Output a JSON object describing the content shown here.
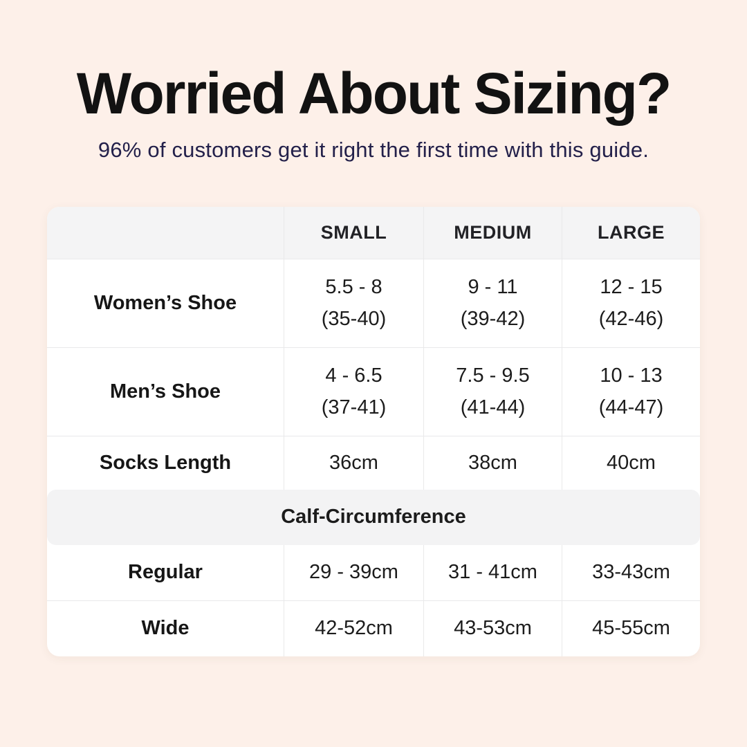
{
  "colors": {
    "background": "#fdf0e9",
    "title": "#121212",
    "subtitle": "#23204a",
    "card_background": "#ffffff",
    "header_row_background": "#f4f4f5",
    "band_background": "#f3f3f4",
    "grid_line": "#e9e9ea",
    "text": "#1c1c1c"
  },
  "header": {
    "title": "Worried About Sizing?",
    "subtitle": "96% of customers get it right the first time with this guide."
  },
  "table": {
    "column_headers": [
      "SMALL",
      "MEDIUM",
      "LARGE"
    ],
    "rows": [
      {
        "label": "Women’s Shoe",
        "cells": [
          {
            "line1": "5.5 - 8",
            "line2": "(35-40)"
          },
          {
            "line1": "9 - 11",
            "line2": "(39-42)"
          },
          {
            "line1": "12 - 15",
            "line2": "(42-46)"
          }
        ]
      },
      {
        "label": "Men’s Shoe",
        "cells": [
          {
            "line1": "4 - 6.5",
            "line2": "(37-41)"
          },
          {
            "line1": "7.5 - 9.5",
            "line2": "(41-44)"
          },
          {
            "line1": "10 - 13",
            "line2": "(44-47)"
          }
        ]
      },
      {
        "label": "Socks Length",
        "cells": [
          {
            "line1": "36cm"
          },
          {
            "line1": "38cm"
          },
          {
            "line1": "40cm"
          }
        ]
      }
    ],
    "section_header": "Calf-Circumference",
    "section_rows": [
      {
        "label": "Regular",
        "cells": [
          "29 - 39cm",
          "31 - 41cm",
          "33-43cm"
        ]
      },
      {
        "label": "Wide",
        "cells": [
          "42-52cm",
          "43-53cm",
          "45-55cm"
        ]
      }
    ]
  }
}
